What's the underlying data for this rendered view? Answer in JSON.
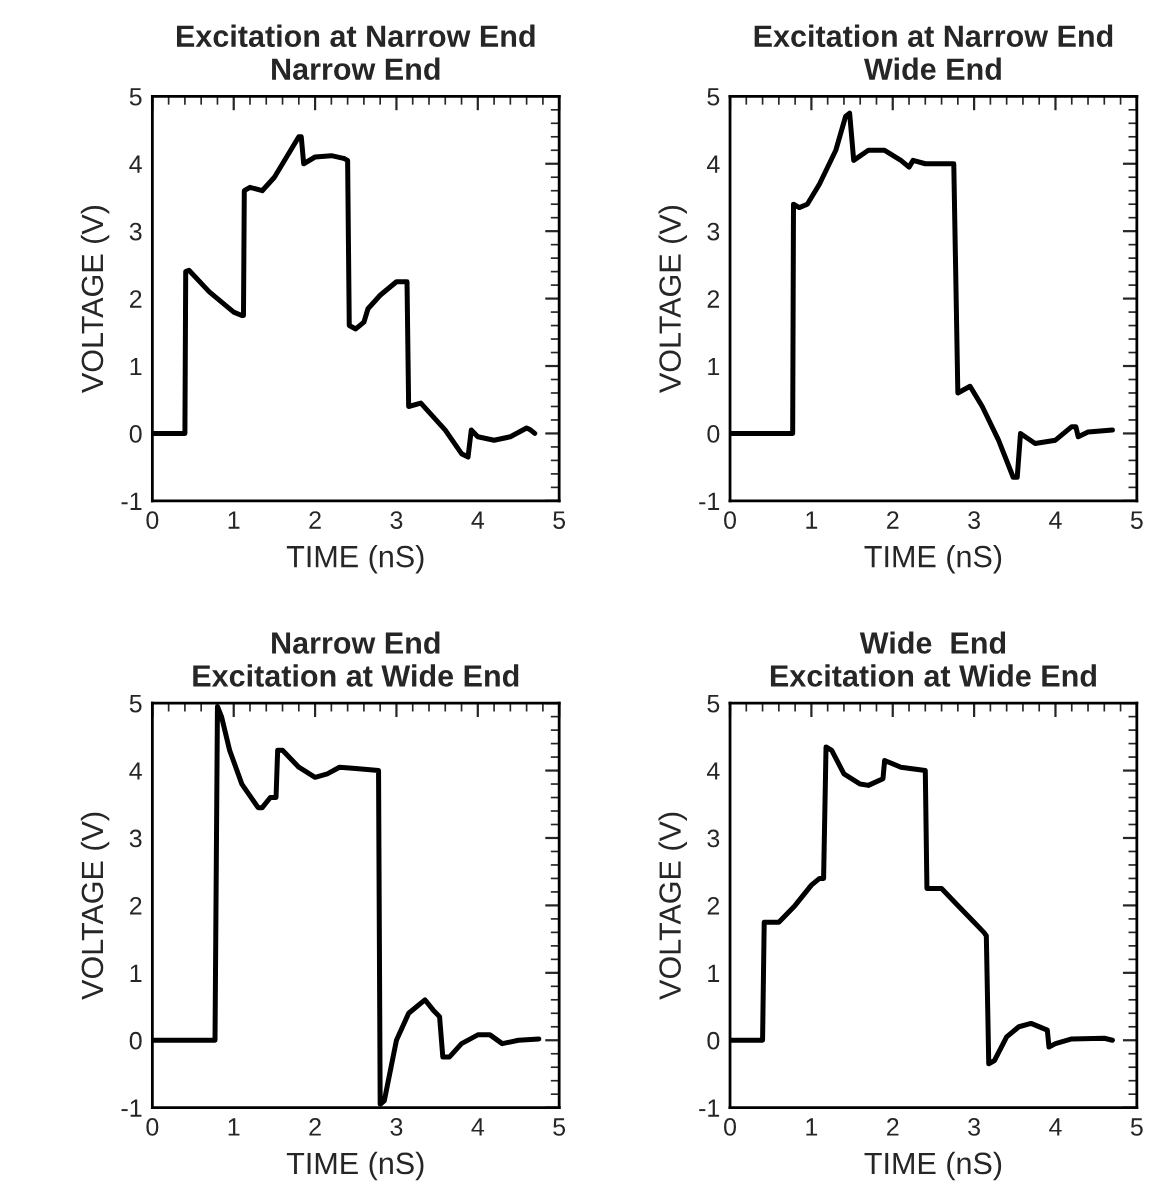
{
  "chart_data": [
    {
      "type": "line",
      "title": "Excitation at Narrow End\nNarrow End",
      "xlabel": "TIME (nS)",
      "ylabel": "VOLTAGE (V)",
      "xlim": [
        0,
        5
      ],
      "ylim": [
        -1,
        5
      ],
      "xticks": [
        0,
        1,
        2,
        3,
        4,
        5
      ],
      "yticks": [
        -1,
        0,
        1,
        2,
        3,
        4,
        5
      ],
      "grid": false,
      "series": [
        {
          "color": "#000000",
          "x": [
            0,
            0.4,
            0.41,
            0.45,
            0.7,
            1.0,
            1.1,
            1.12,
            1.13,
            1.2,
            1.35,
            1.5,
            1.7,
            1.8,
            1.83,
            1.86,
            2.0,
            2.2,
            2.35,
            2.4,
            2.42,
            2.5,
            2.6,
            2.65,
            2.8,
            3.0,
            3.13,
            3.15,
            3.3,
            3.45,
            3.6,
            3.8,
            3.88,
            3.92,
            4.0,
            4.2,
            4.4,
            4.6,
            4.65,
            4.7
          ],
          "values": [
            0,
            0,
            2.4,
            2.42,
            2.1,
            1.8,
            1.75,
            1.75,
            3.6,
            3.65,
            3.6,
            3.8,
            4.2,
            4.4,
            4.4,
            4.0,
            4.1,
            4.12,
            4.08,
            4.05,
            1.6,
            1.55,
            1.65,
            1.85,
            2.05,
            2.25,
            2.25,
            0.4,
            0.45,
            0.25,
            0.05,
            -0.3,
            -0.35,
            0.05,
            -0.05,
            -0.1,
            -0.05,
            0.08,
            0.05,
            0.0
          ]
        }
      ]
    },
    {
      "type": "line",
      "title": "Excitation at Narrow End\nWide End",
      "xlabel": "TIME (nS)",
      "ylabel": "VOLTAGE (V)",
      "xlim": [
        0,
        5
      ],
      "ylim": [
        -1,
        5
      ],
      "xticks": [
        0,
        1,
        2,
        3,
        4,
        5
      ],
      "yticks": [
        -1,
        0,
        1,
        2,
        3,
        4,
        5
      ],
      "grid": false,
      "series": [
        {
          "color": "#000000",
          "x": [
            0,
            0.77,
            0.78,
            0.85,
            0.95,
            1.1,
            1.3,
            1.42,
            1.47,
            1.52,
            1.7,
            1.9,
            2.1,
            2.2,
            2.25,
            2.4,
            2.75,
            2.8,
            2.95,
            3.1,
            3.3,
            3.48,
            3.53,
            3.57,
            3.75,
            4.0,
            4.2,
            4.25,
            4.28,
            4.4,
            4.7
          ],
          "values": [
            0,
            0,
            3.4,
            3.35,
            3.4,
            3.7,
            4.2,
            4.7,
            4.75,
            4.05,
            4.2,
            4.2,
            4.05,
            3.95,
            4.05,
            4.0,
            4.0,
            0.6,
            0.7,
            0.4,
            -0.1,
            -0.65,
            -0.65,
            0.0,
            -0.15,
            -0.1,
            0.1,
            0.1,
            -0.05,
            0.02,
            0.05
          ]
        }
      ]
    },
    {
      "type": "line",
      "title": "Narrow End\nExcitation at Wide End",
      "xlabel": "TIME (nS)",
      "ylabel": "VOLTAGE (V)",
      "xlim": [
        0,
        5
      ],
      "ylim": [
        -1,
        5
      ],
      "xticks": [
        0,
        1,
        2,
        3,
        4,
        5
      ],
      "yticks": [
        -1,
        0,
        1,
        2,
        3,
        4,
        5
      ],
      "grid": false,
      "series": [
        {
          "color": "#000000",
          "x": [
            0,
            0.77,
            0.8,
            0.85,
            0.95,
            1.1,
            1.3,
            1.35,
            1.45,
            1.52,
            1.54,
            1.6,
            1.8,
            2.0,
            2.15,
            2.3,
            2.5,
            2.78,
            2.8,
            2.85,
            3.0,
            3.15,
            3.35,
            3.45,
            3.53,
            3.57,
            3.65,
            3.8,
            4.0,
            4.15,
            4.3,
            4.5,
            4.75
          ],
          "values": [
            0,
            0,
            4.95,
            4.8,
            4.3,
            3.8,
            3.45,
            3.45,
            3.6,
            3.6,
            4.3,
            4.3,
            4.05,
            3.9,
            3.95,
            4.05,
            4.03,
            4.0,
            -0.95,
            -0.9,
            0.0,
            0.4,
            0.6,
            0.45,
            0.35,
            -0.25,
            -0.25,
            -0.05,
            0.08,
            0.08,
            -0.05,
            0.0,
            0.02
          ]
        }
      ]
    },
    {
      "type": "line",
      "title": "Wide  End\nExcitation at Wide End",
      "xlabel": "TIME (nS)",
      "ylabel": "VOLTAGE (V)",
      "xlim": [
        0,
        5
      ],
      "ylim": [
        -1,
        5
      ],
      "xticks": [
        0,
        1,
        2,
        3,
        4,
        5
      ],
      "yticks": [
        -1,
        0,
        1,
        2,
        3,
        4,
        5
      ],
      "grid": false,
      "series": [
        {
          "color": "#000000",
          "x": [
            0,
            0.4,
            0.42,
            0.6,
            0.8,
            1.0,
            1.1,
            1.15,
            1.18,
            1.25,
            1.4,
            1.6,
            1.7,
            1.88,
            1.9,
            2.1,
            2.4,
            2.42,
            2.6,
            2.8,
            3.0,
            3.12,
            3.15,
            3.18,
            3.25,
            3.4,
            3.55,
            3.7,
            3.9,
            3.92,
            4.0,
            4.2,
            4.6,
            4.7
          ],
          "values": [
            0,
            0,
            1.75,
            1.75,
            2.0,
            2.3,
            2.4,
            2.4,
            4.35,
            4.3,
            3.95,
            3.8,
            3.78,
            3.88,
            4.15,
            4.05,
            4.0,
            2.25,
            2.25,
            2.0,
            1.75,
            1.6,
            1.55,
            -0.35,
            -0.3,
            0.05,
            0.2,
            0.25,
            0.15,
            -0.1,
            -0.05,
            0.02,
            0.03,
            0.0
          ]
        }
      ]
    }
  ]
}
